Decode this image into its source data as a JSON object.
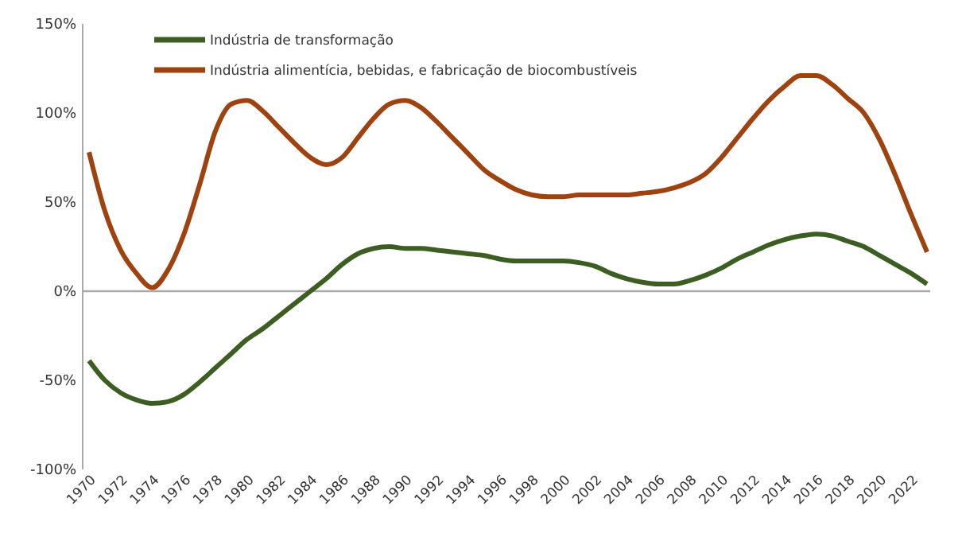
{
  "chart_data": {
    "type": "line",
    "categories": [
      "1970",
      null,
      "1972",
      null,
      "1974",
      null,
      "1976",
      null,
      "1978",
      null,
      "1980",
      null,
      "1982",
      null,
      "1984",
      null,
      "1986",
      null,
      "1988",
      null,
      "1990",
      null,
      "1992",
      null,
      "1994",
      null,
      "1996",
      null,
      "1998",
      null,
      "2000",
      null,
      "2002",
      null,
      "2004",
      null,
      "2006",
      null,
      "2008",
      null,
      "2010",
      null,
      "2012",
      null,
      "2014",
      null,
      "2016",
      null,
      "2018",
      null,
      "2020",
      null,
      "2022",
      null
    ],
    "series": [
      {
        "name": "Indústria de transformação",
        "color": "#3d5e22",
        "values": [
          -39,
          -50,
          -57,
          -61,
          -63,
          -62,
          -58,
          -51,
          -43,
          -35,
          -27,
          -21,
          -14,
          -7,
          0,
          7,
          15,
          21,
          24,
          25,
          24,
          24,
          23,
          22,
          21,
          20,
          18,
          17,
          17,
          17,
          17,
          16,
          14,
          10,
          7,
          5,
          4,
          4,
          6,
          9,
          13,
          18,
          22,
          26,
          29,
          31,
          32,
          31,
          28,
          25,
          20,
          15,
          10,
          4
        ]
      },
      {
        "name": "Indústria alimentícia, bebidas, e fabricação de biocombustíveis",
        "color": "#9e420f",
        "values": [
          78,
          45,
          23,
          10,
          2,
          12,
          32,
          60,
          90,
          105,
          107,
          101,
          92,
          83,
          75,
          71,
          75,
          86,
          97,
          105,
          107,
          103,
          95,
          86,
          77,
          68,
          62,
          57,
          54,
          53,
          53,
          54,
          54,
          54,
          54,
          55,
          56,
          58,
          61,
          66,
          75,
          86,
          97,
          107,
          115,
          121,
          121,
          116,
          108,
          100,
          85,
          65,
          43,
          22
        ]
      }
    ],
    "ylim": [
      -100,
      150
    ],
    "yticks": [
      {
        "value": -100,
        "label": "-100%"
      },
      {
        "value": -50,
        "label": "-50%"
      },
      {
        "value": 0,
        "label": "0%"
      },
      {
        "value": 50,
        "label": "50%"
      },
      {
        "value": 100,
        "label": "100%"
      },
      {
        "value": 150,
        "label": "150%"
      }
    ],
    "ref_lines": [
      {
        "axis": "y",
        "value": 0,
        "color": "#aaaaaa"
      }
    ],
    "legend": "top left",
    "grid": false,
    "marker": "none",
    "line_style": "solid"
  }
}
